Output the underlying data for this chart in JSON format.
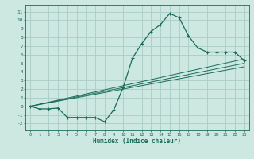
{
  "xlabel": "Humidex (Indice chaleur)",
  "bg_color": "#cce8e0",
  "grid_color": "#aaccc4",
  "line_color": "#1a6b5a",
  "xlim": [
    -0.5,
    23.5
  ],
  "ylim": [
    -2.8,
    11.8
  ],
  "xticks": [
    0,
    1,
    2,
    3,
    4,
    5,
    6,
    7,
    8,
    9,
    10,
    11,
    12,
    13,
    14,
    15,
    16,
    17,
    18,
    19,
    20,
    21,
    22,
    23
  ],
  "yticks": [
    -2,
    -1,
    0,
    1,
    2,
    3,
    4,
    5,
    6,
    7,
    8,
    9,
    10,
    11
  ],
  "main_x": [
    0,
    1,
    2,
    3,
    4,
    5,
    6,
    7,
    8,
    9,
    10,
    11,
    12,
    13,
    14,
    15,
    16,
    17,
    18,
    19,
    20,
    21,
    22,
    23
  ],
  "main_y": [
    0.0,
    -0.3,
    -0.3,
    -0.2,
    -1.3,
    -1.3,
    -1.3,
    -1.3,
    -1.8,
    -0.4,
    2.2,
    5.6,
    7.3,
    8.7,
    9.5,
    10.8,
    10.3,
    8.2,
    6.8,
    6.3,
    6.3,
    6.3,
    6.3,
    5.3
  ],
  "line1_x": [
    0,
    23
  ],
  "line1_y": [
    0.0,
    5.5
  ],
  "line2_x": [
    0,
    23
  ],
  "line2_y": [
    0.0,
    5.0
  ],
  "line3_x": [
    0,
    23
  ],
  "line3_y": [
    0.0,
    4.6
  ]
}
